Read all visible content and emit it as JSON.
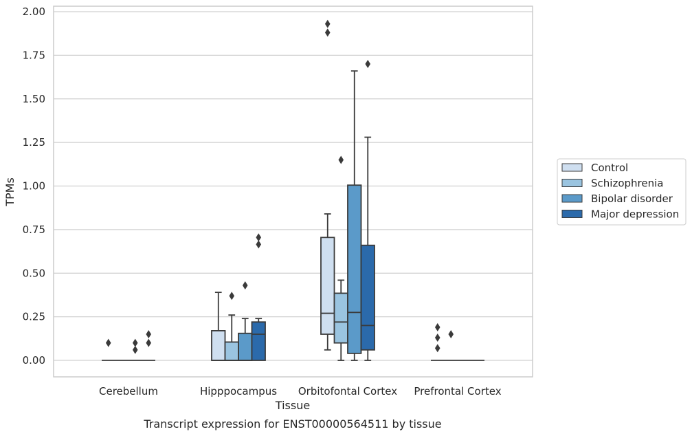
{
  "chart_data": {
    "type": "box",
    "title": "",
    "caption": "Transcript expression for ENST00000564511 by tissue",
    "xlabel": "Tissue",
    "ylabel": "TPMs",
    "ylim": [
      -0.09,
      2.03
    ],
    "yticks": [
      0.0,
      0.25,
      0.5,
      0.75,
      1.0,
      1.25,
      1.5,
      1.75,
      2.0
    ],
    "ytick_labels": [
      "0.00",
      "0.25",
      "0.50",
      "0.75",
      "1.00",
      "1.25",
      "1.50",
      "1.75",
      "2.00"
    ],
    "grid": "horizontal",
    "legend_position": "right",
    "categories": [
      "Cerebellum",
      "Hipppocampus",
      "Orbitofontal Cortex",
      "Prefrontal Cortex"
    ],
    "series": [
      {
        "name": "Control",
        "color": "#cfdff0",
        "boxes": [
          {
            "whislo": 0,
            "q1": 0,
            "med": 0,
            "q3": 0,
            "whishi": 0,
            "fliers": [
              0.1
            ]
          },
          {
            "whislo": 0,
            "q1": 0,
            "med": 0,
            "q3": 0.17,
            "whishi": 0.39,
            "fliers": []
          },
          {
            "whislo": 0.06,
            "q1": 0.15,
            "med": 0.27,
            "q3": 0.705,
            "whishi": 0.84,
            "fliers": [
              1.88,
              1.93
            ]
          },
          {
            "whislo": 0,
            "q1": 0,
            "med": 0,
            "q3": 0,
            "whishi": 0,
            "fliers": [
              0.07,
              0.13,
              0.19
            ]
          }
        ]
      },
      {
        "name": "Schizophrenia",
        "color": "#9ac4e0",
        "boxes": [
          {
            "whislo": 0,
            "q1": 0,
            "med": 0,
            "q3": 0,
            "whishi": 0,
            "fliers": []
          },
          {
            "whislo": 0,
            "q1": 0,
            "med": 0,
            "q3": 0.105,
            "whishi": 0.26,
            "fliers": [
              0.37
            ]
          },
          {
            "whislo": 0,
            "q1": 0.1,
            "med": 0.22,
            "q3": 0.385,
            "whishi": 0.46,
            "fliers": [
              1.15
            ]
          },
          {
            "whislo": 0,
            "q1": 0,
            "med": 0,
            "q3": 0,
            "whishi": 0,
            "fliers": [
              0.15
            ]
          }
        ]
      },
      {
        "name": "Bipolar disorder",
        "color": "#5b9ac9",
        "boxes": [
          {
            "whislo": 0,
            "q1": 0,
            "med": 0,
            "q3": 0,
            "whishi": 0,
            "fliers": [
              0.06,
              0.1
            ]
          },
          {
            "whislo": 0,
            "q1": 0,
            "med": 0,
            "q3": 0.155,
            "whishi": 0.24,
            "fliers": [
              0.43
            ]
          },
          {
            "whislo": 0,
            "q1": 0.04,
            "med": 0.275,
            "q3": 1.005,
            "whishi": 1.66,
            "fliers": []
          },
          {
            "whislo": 0,
            "q1": 0,
            "med": 0,
            "q3": 0,
            "whishi": 0,
            "fliers": []
          }
        ]
      },
      {
        "name": "Major depression",
        "color": "#2b6aab",
        "boxes": [
          {
            "whislo": 0,
            "q1": 0,
            "med": 0,
            "q3": 0,
            "whishi": 0,
            "fliers": [
              0.1,
              0.15
            ]
          },
          {
            "whislo": 0,
            "q1": 0,
            "med": 0.15,
            "q3": 0.22,
            "whishi": 0.24,
            "fliers": [
              0.665,
              0.705
            ]
          },
          {
            "whislo": 0,
            "q1": 0.06,
            "med": 0.2,
            "q3": 0.66,
            "whishi": 1.28,
            "fliers": [
              1.7
            ]
          },
          {
            "whislo": 0,
            "q1": 0,
            "med": 0,
            "q3": 0,
            "whishi": 0,
            "fliers": []
          }
        ]
      }
    ]
  }
}
